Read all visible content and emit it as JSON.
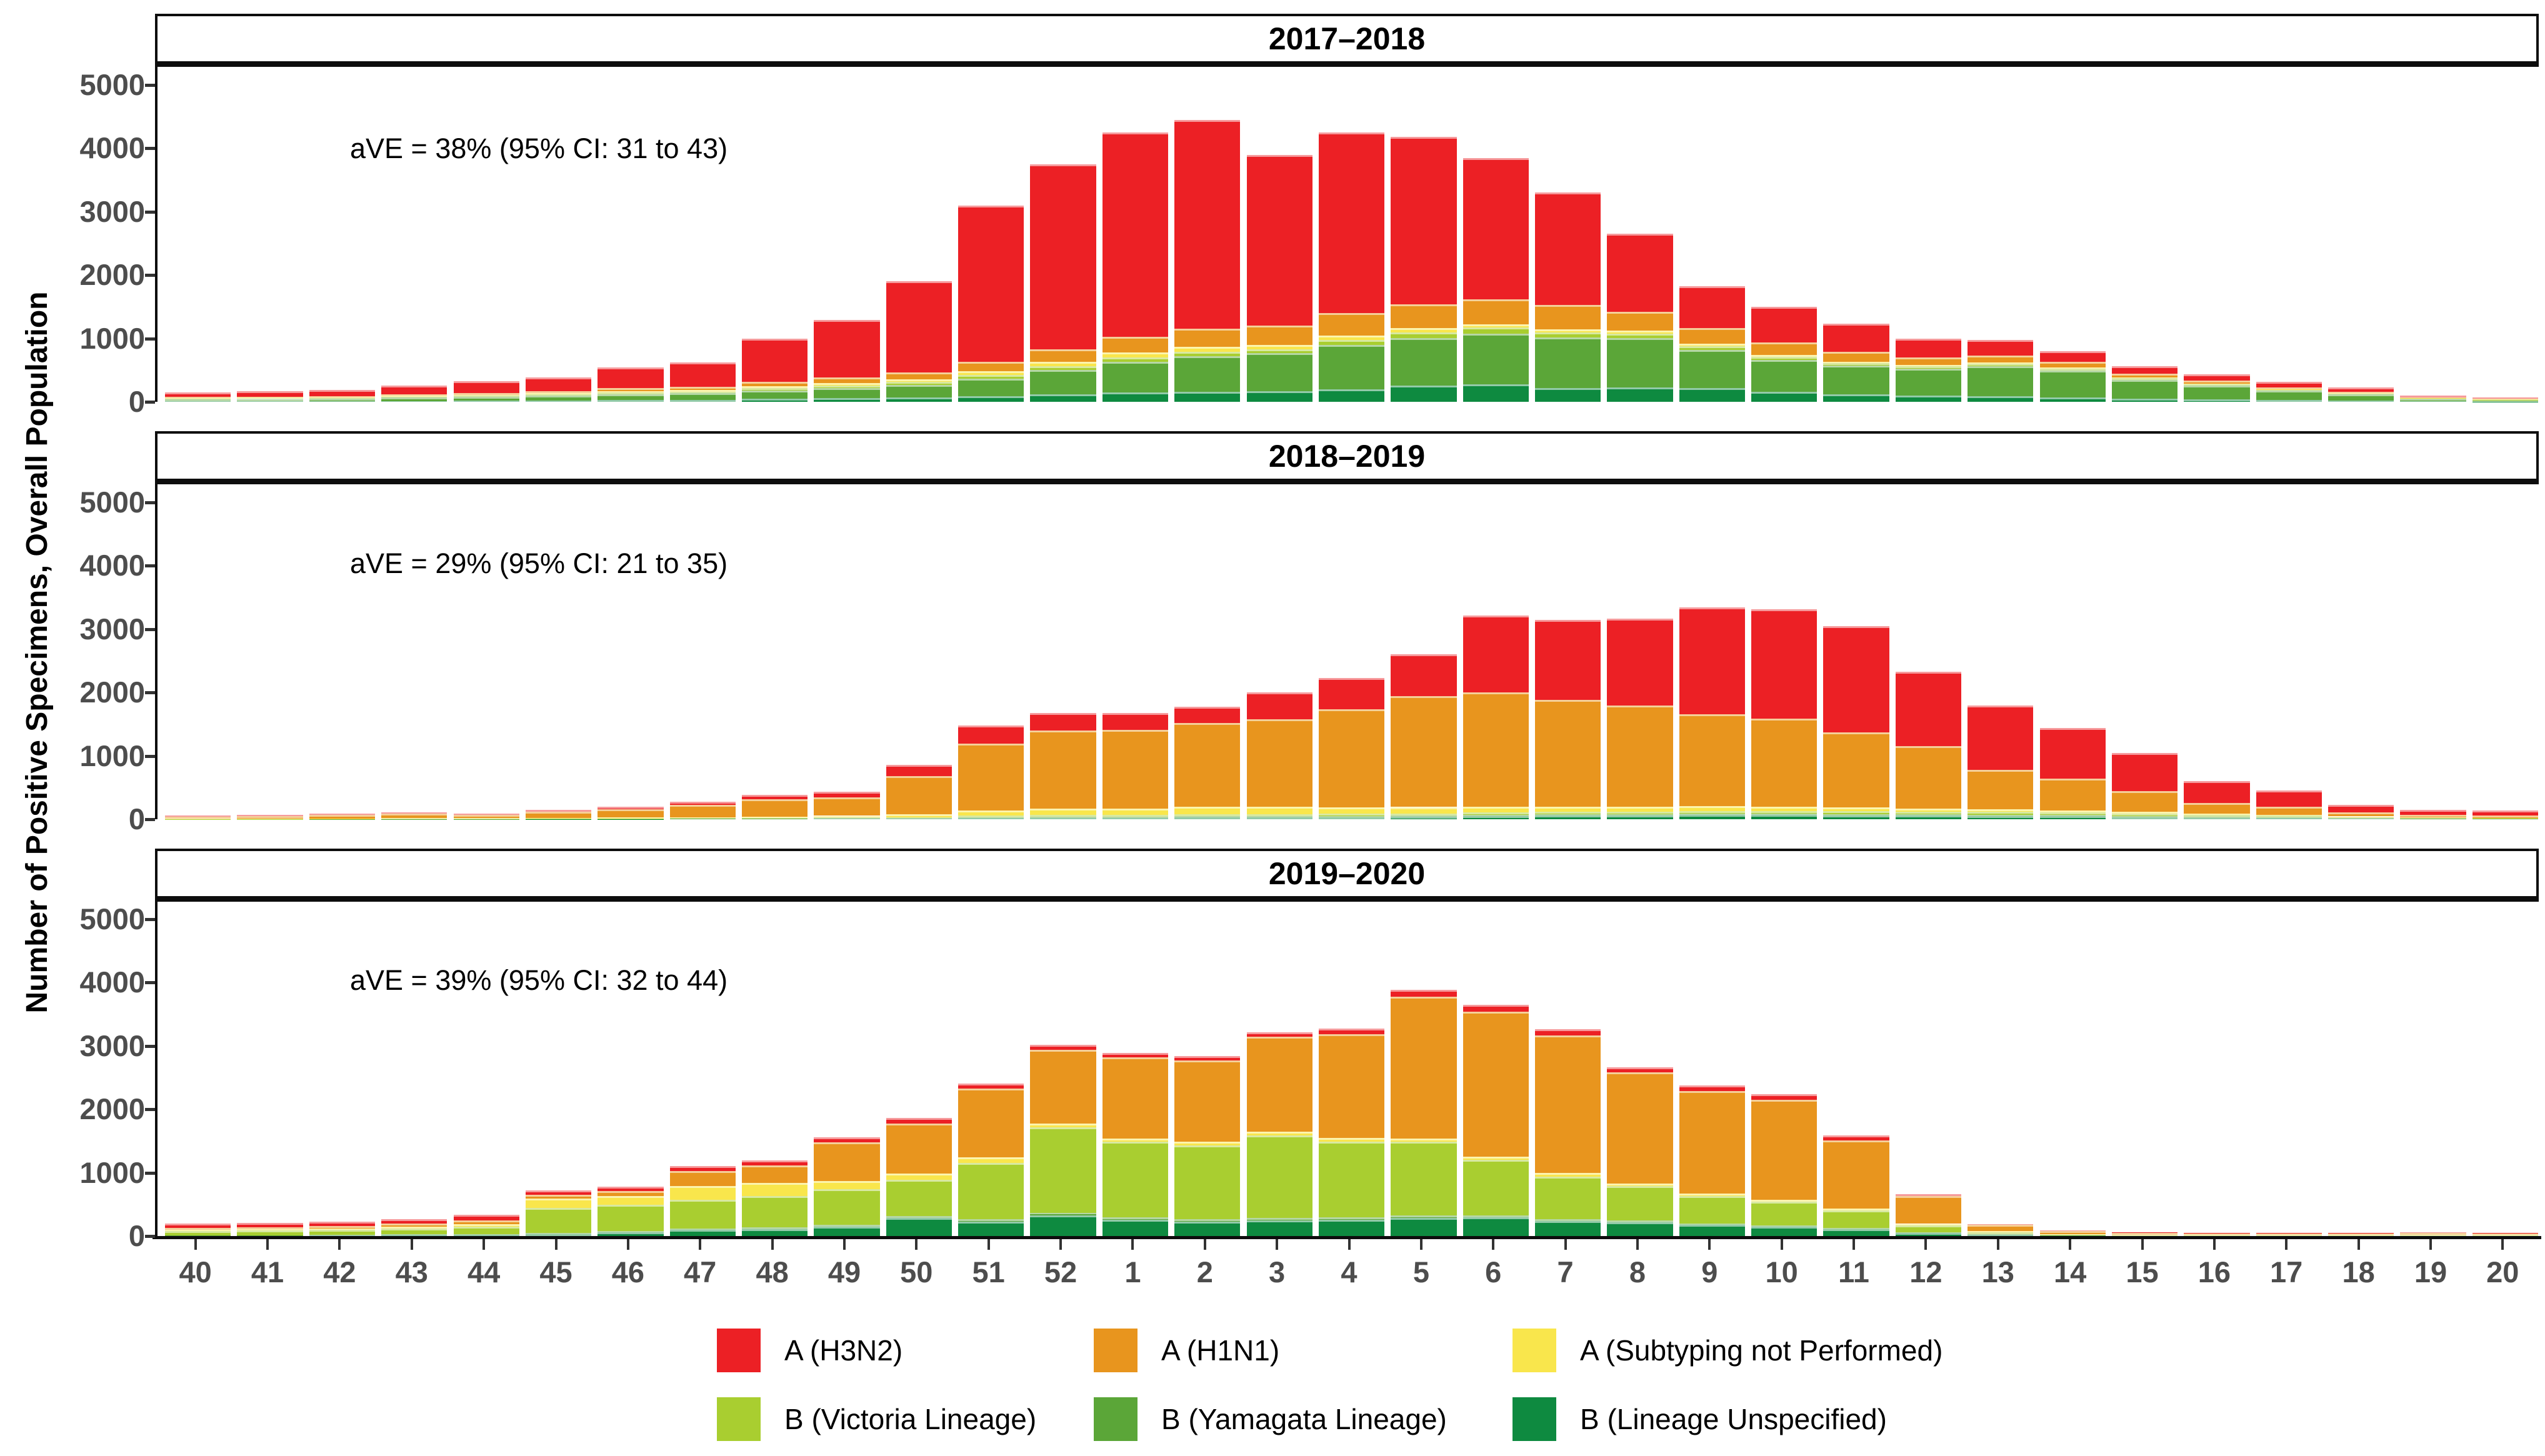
{
  "figure": {
    "ylabel": "Number of Positive Specimens, Overall Population"
  },
  "chart_data": {
    "type": "bar",
    "stacked": true,
    "grid": false,
    "legend_position": "bottom",
    "xlabel": "",
    "ylabel": "Number of Positive Specimens, Overall Population",
    "ylim": [
      0,
      5000
    ],
    "yticks": [
      0,
      1000,
      2000,
      3000,
      4000,
      5000
    ],
    "categories": [
      "40",
      "41",
      "42",
      "43",
      "44",
      "45",
      "46",
      "47",
      "48",
      "49",
      "50",
      "51",
      "52",
      "1",
      "2",
      "3",
      "4",
      "5",
      "6",
      "7",
      "8",
      "9",
      "10",
      "11",
      "12",
      "13",
      "14",
      "15",
      "16",
      "17",
      "18",
      "19",
      "20"
    ],
    "legend": [
      {
        "label": "A (H3N2)",
        "color": "#EC2025"
      },
      {
        "label": "A (H1N1)",
        "color": "#E8951E"
      },
      {
        "label": "A (Subtyping not Performed)",
        "color": "#F9E64C"
      },
      {
        "label": "B (Victoria Lineage)",
        "color": "#A9CE30"
      },
      {
        "label": "B (Yamagata Lineage)",
        "color": "#5BA638"
      },
      {
        "label": "B (Lineage Unspecified)",
        "color": "#0E8A40"
      }
    ],
    "panels": [
      {
        "title": "2017–2018",
        "annotation": "aVE = 38% (95% CI: 31 to 43)",
        "series": [
          {
            "name": "B (Lineage Unspecified)",
            "color": "#0E8A40",
            "values": [
              10,
              10,
              12,
              15,
              20,
              25,
              30,
              35,
              50,
              60,
              70,
              90,
              120,
              150,
              160,
              170,
              200,
              260,
              280,
              220,
              230,
              220,
              160,
              120,
              100,
              90,
              70,
              50,
              40,
              30,
              20,
              10,
              5
            ]
          },
          {
            "name": "B (Yamagata Lineage)",
            "color": "#5BA638",
            "values": [
              30,
              35,
              40,
              50,
              60,
              70,
              90,
              100,
              130,
              160,
              200,
              280,
              380,
              480,
              560,
              600,
              700,
              750,
              800,
              800,
              780,
              600,
              500,
              450,
              420,
              470,
              420,
              300,
              220,
              150,
              100,
              40,
              25
            ]
          },
          {
            "name": "B (Victoria Lineage)",
            "color": "#A9CE30",
            "values": [
              10,
              10,
              12,
              15,
              18,
              20,
              25,
              25,
              35,
              40,
              45,
              50,
              60,
              70,
              70,
              60,
              80,
              90,
              90,
              80,
              70,
              60,
              50,
              40,
              40,
              40,
              35,
              25,
              20,
              15,
              10,
              5,
              5
            ]
          },
          {
            "name": "A (Subtyping not Performed)",
            "color": "#F9E64C",
            "values": [
              10,
              10,
              10,
              15,
              15,
              20,
              25,
              25,
              35,
              40,
              45,
              60,
              70,
              80,
              80,
              70,
              70,
              60,
              50,
              45,
              40,
              35,
              30,
              25,
              20,
              20,
              15,
              10,
              10,
              5,
              5,
              3,
              2
            ]
          },
          {
            "name": "A (H1N1)",
            "color": "#E8951E",
            "values": [
              15,
              15,
              20,
              25,
              30,
              35,
              45,
              50,
              70,
              85,
              100,
              150,
              200,
              250,
              280,
              300,
              350,
              380,
              400,
              380,
              300,
              250,
              200,
              150,
              120,
              110,
              90,
              60,
              45,
              30,
              20,
              10,
              8
            ]
          },
          {
            "name": "A (H3N2)",
            "color": "#EC2025",
            "values": [
              75,
              85,
              91,
              135,
              187,
              220,
              330,
              385,
              680,
              905,
              1440,
              2470,
              2920,
              3220,
              3300,
              2700,
              2850,
              2640,
              2230,
              1775,
              1230,
              665,
              560,
              445,
              300,
              250,
              170,
              115,
              95,
              90,
              75,
              32,
              25
            ]
          }
        ]
      },
      {
        "title": "2018–2019",
        "annotation": "aVE = 29% (95% CI: 21 to 35)",
        "series": [
          {
            "name": "B (Lineage Unspecified)",
            "color": "#0E8A40",
            "values": [
              2,
              2,
              2,
              3,
              3,
              4,
              5,
              6,
              8,
              10,
              12,
              20,
              25,
              25,
              30,
              30,
              35,
              40,
              50,
              55,
              60,
              65,
              65,
              60,
              55,
              50,
              45,
              35,
              25,
              20,
              12,
              8,
              6
            ]
          },
          {
            "name": "B (Yamagata Lineage)",
            "color": "#5BA638",
            "values": [
              1,
              1,
              2,
              2,
              2,
              3,
              4,
              5,
              6,
              8,
              8,
              12,
              15,
              15,
              18,
              18,
              18,
              18,
              20,
              20,
              20,
              22,
              22,
              22,
              22,
              22,
              20,
              18,
              15,
              12,
              8,
              5,
              4
            ]
          },
          {
            "name": "B (Victoria Lineage)",
            "color": "#A9CE30",
            "values": [
              2,
              2,
              3,
              3,
              3,
              5,
              6,
              8,
              10,
              12,
              15,
              25,
              30,
              30,
              35,
              35,
              35,
              35,
              40,
              40,
              40,
              45,
              45,
              45,
              45,
              45,
              40,
              35,
              30,
              25,
              15,
              10,
              8
            ]
          },
          {
            "name": "A (Subtyping not Performed)",
            "color": "#F9E64C",
            "values": [
              4,
              5,
              5,
              8,
              8,
              10,
              12,
              15,
              20,
              25,
              45,
              80,
              100,
              100,
              110,
              110,
              100,
              100,
              90,
              85,
              80,
              75,
              70,
              60,
              50,
              40,
              35,
              30,
              20,
              15,
              10,
              6,
              5
            ]
          },
          {
            "name": "A (H1N1)",
            "color": "#E8951E",
            "values": [
              35,
              40,
              55,
              70,
              55,
              95,
              130,
              190,
              270,
              290,
              600,
              1060,
              1230,
              1240,
              1330,
              1390,
              1550,
              1750,
              1800,
              1680,
              1600,
              1450,
              1390,
              1180,
              980,
              620,
              500,
              330,
              170,
              130,
              60,
              40,
              35
            ]
          },
          {
            "name": "A (H3N2)",
            "color": "#EC2025",
            "values": [
              11,
              15,
              18,
              24,
              19,
              33,
              43,
              51,
              71,
              85,
              175,
              283,
              280,
              270,
              257,
              417,
              492,
              657,
              1220,
              1270,
              1370,
              1683,
              1718,
              1683,
              1178,
              1023,
              800,
              602,
              340,
              248,
              125,
              81,
              82
            ]
          }
        ]
      },
      {
        "title": "2019–2020",
        "annotation": "aVE = 39% (95% CI: 32 to 44)",
        "series": [
          {
            "name": "B (Lineage Unspecified)",
            "color": "#0E8A40",
            "values": [
              10,
              10,
              15,
              20,
              25,
              35,
              60,
              100,
              110,
              150,
              290,
              230,
              330,
              260,
              230,
              250,
              260,
              290,
              300,
              240,
              220,
              175,
              150,
              110,
              50,
              25,
              8,
              4,
              3,
              3,
              3,
              3,
              3
            ]
          },
          {
            "name": "B (Yamagata Lineage)",
            "color": "#5BA638",
            "values": [
              5,
              5,
              5,
              8,
              10,
              15,
              18,
              20,
              25,
              30,
              30,
              35,
              40,
              35,
              35,
              35,
              35,
              35,
              30,
              30,
              25,
              22,
              20,
              15,
              8,
              4,
              2,
              1,
              1,
              1,
              1,
              1,
              1
            ]
          },
          {
            "name": "B (Victoria Lineage)",
            "color": "#A9CE30",
            "values": [
              60,
              70,
              75,
              90,
              110,
              390,
              420,
              450,
              500,
              560,
              570,
              890,
              1350,
              1190,
              1170,
              1300,
              1190,
              1160,
              870,
              670,
              540,
              430,
              370,
              280,
              110,
              35,
              10,
              5,
              4,
              4,
              4,
              4,
              4
            ]
          },
          {
            "name": "A (Subtyping not Performed)",
            "color": "#F9E64C",
            "values": [
              25,
              25,
              25,
              30,
              40,
              155,
              130,
              215,
              200,
              130,
              95,
              85,
              60,
              55,
              55,
              60,
              60,
              55,
              50,
              55,
              45,
              40,
              35,
              30,
              25,
              15,
              12,
              10,
              8,
              8,
              8,
              8,
              8
            ]
          },
          {
            "name": "A (H1N1)",
            "color": "#E8951E",
            "values": [
              25,
              30,
              35,
              45,
              60,
              55,
              80,
              240,
              280,
              610,
              795,
              1090,
              1160,
              1280,
              1280,
              1500,
              1640,
              2240,
              2290,
              2170,
              1750,
              1620,
              1580,
              1070,
              440,
              95,
              50,
              35,
              30,
              30,
              30,
              35,
              30
            ]
          },
          {
            "name": "A (H3N2)",
            "color": "#EC2025",
            "values": [
              70,
              70,
              70,
              77,
              90,
              70,
              67,
              80,
              75,
              80,
              80,
              80,
              80,
              70,
              70,
              75,
              85,
              110,
              110,
              105,
              80,
              93,
              85,
              85,
              27,
              16,
              8,
              5,
              6,
              4,
              4,
              4,
              4
            ]
          }
        ]
      }
    ]
  }
}
